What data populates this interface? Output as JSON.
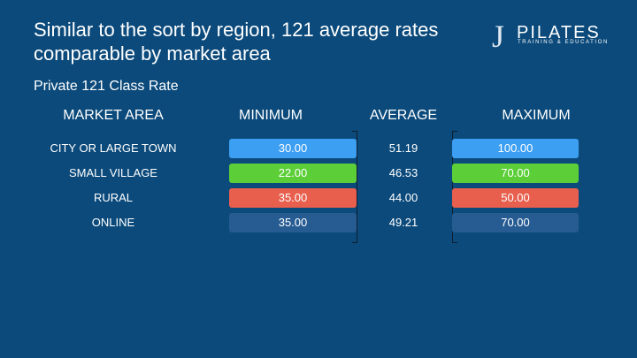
{
  "header": {
    "title": "Similar to the sort by region, 121 average rates comparable by market area",
    "subtitle": "Private 121 Class Rate"
  },
  "logo": {
    "mark": "J",
    "name": "PILATES",
    "tagline": "TRAINING & EDUCATION"
  },
  "table": {
    "columns": [
      "MARKET AREA",
      "MINIMUM",
      "AVERAGE",
      "MAXIMUM"
    ],
    "rows": [
      [
        "CITY OR LARGE TOWN",
        "30.00",
        "51.19",
        "100.00"
      ],
      [
        "SMALL VILLAGE",
        "22.00",
        "46.53",
        "70.00"
      ],
      [
        "RURAL",
        "35.00",
        "44.00",
        "50.00"
      ],
      [
        "ONLINE",
        "35.00",
        "49.21",
        "70.00"
      ]
    ]
  }
}
